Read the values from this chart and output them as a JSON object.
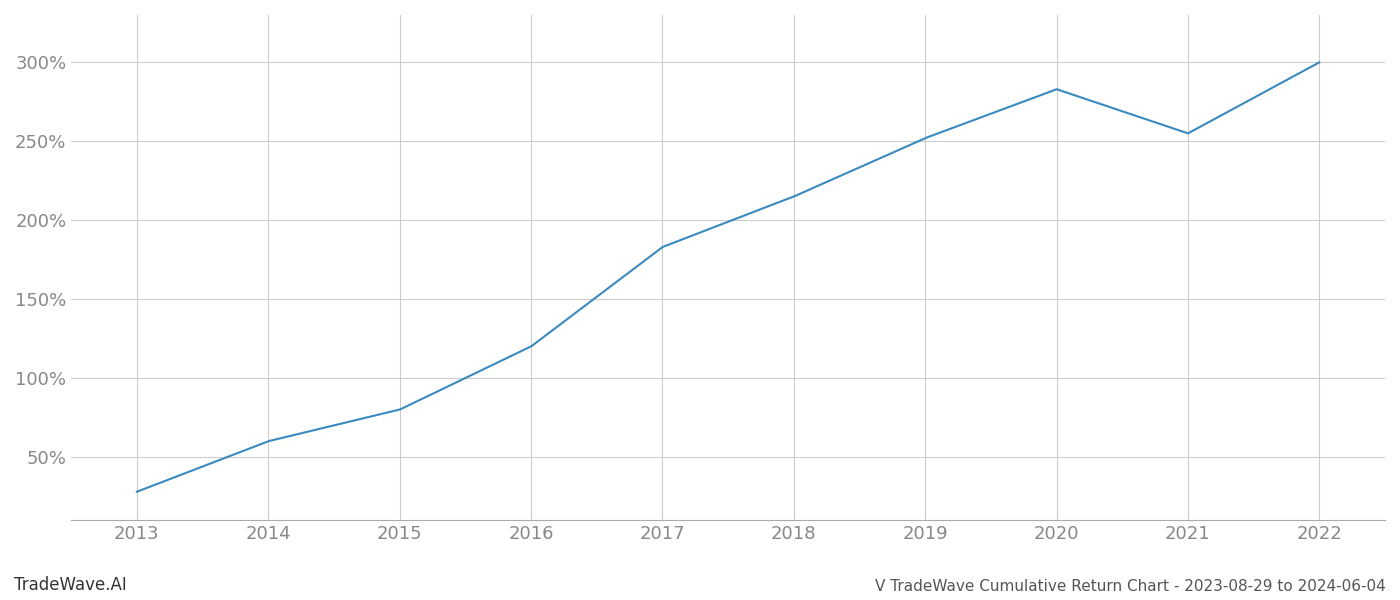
{
  "x_years": [
    2013,
    2014,
    2015,
    2016,
    2017,
    2018,
    2019,
    2020,
    2021,
    2022
  ],
  "y_values": [
    28,
    60,
    80,
    120,
    183,
    215,
    252,
    283,
    255,
    300
  ],
  "line_color": "#3a8abf",
  "line_width": 1.5,
  "bg_color": "#ffffff",
  "grid_color": "#cccccc",
  "title": "V TradeWave Cumulative Return Chart - 2023-08-29 to 2024-06-04",
  "watermark": "TradeWave.AI",
  "ylabel_ticks": [
    50,
    100,
    150,
    200,
    250,
    300
  ],
  "xlim": [
    2012.5,
    2022.5
  ],
  "ylim": [
    10,
    330
  ],
  "tick_label_color": "#888888",
  "tick_fontsize": 13,
  "title_fontsize": 11,
  "watermark_fontsize": 12
}
